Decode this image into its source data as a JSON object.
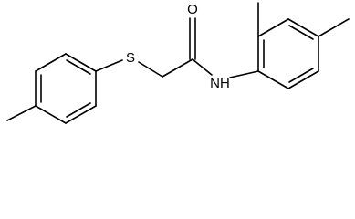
{
  "atoms": {
    "sulfur": "S",
    "oxygen": "O",
    "amine": "NH"
  }
}
